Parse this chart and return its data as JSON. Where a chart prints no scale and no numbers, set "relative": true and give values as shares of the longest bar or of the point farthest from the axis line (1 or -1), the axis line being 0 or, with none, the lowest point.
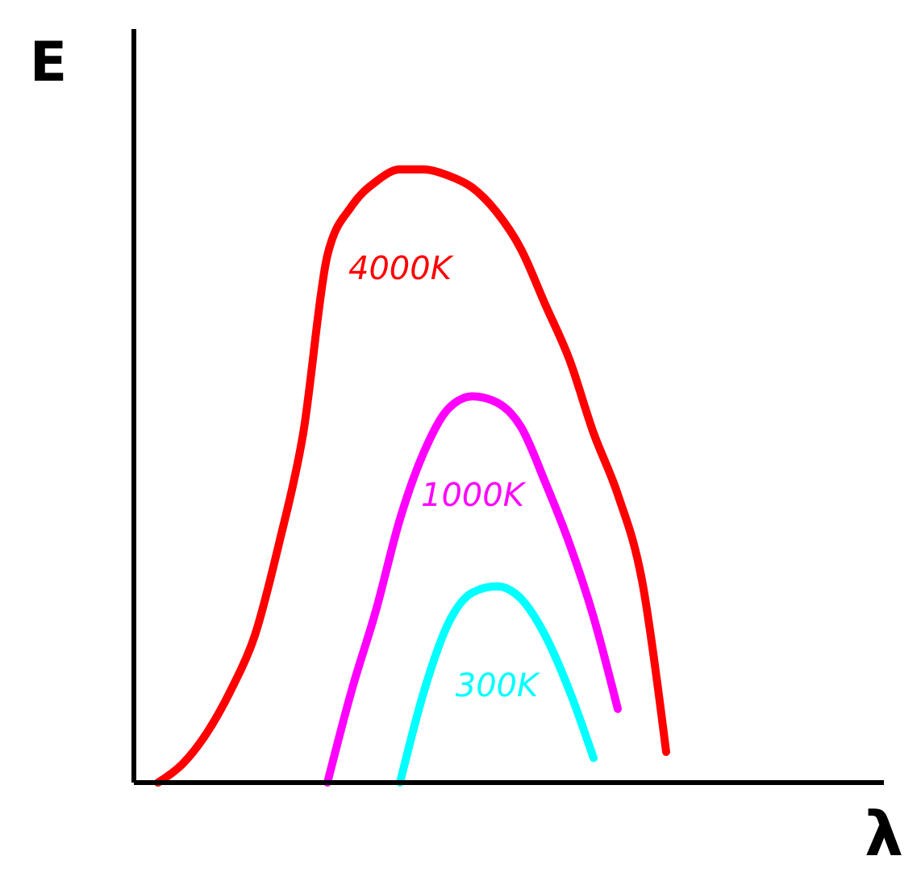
{
  "chart_data": {
    "type": "line",
    "relative": true,
    "ylabel": "E",
    "xlabel": "λ",
    "categories": [
      null,
      null,
      null,
      null,
      null,
      null,
      null,
      null,
      null,
      null,
      null,
      null,
      null,
      null,
      null,
      null,
      null,
      null,
      null,
      null,
      null,
      null,
      null,
      null,
      null,
      null,
      null,
      null,
      null,
      null,
      null,
      null
    ],
    "series": [
      {
        "name": "4000K",
        "color": "#ff0000",
        "values": [
          null,
          0,
          0.03,
          0.08,
          0.15,
          0.24,
          0.39,
          0.57,
          0.86,
          0.94,
          0.98,
          1,
          1,
          0.99,
          0.97,
          0.93,
          0.87,
          0.78,
          0.69,
          0.57,
          0.47,
          0.33,
          0.05,
          null,
          null,
          null,
          null,
          null,
          null,
          null,
          null,
          null
        ]
      },
      {
        "name": "1000K",
        "color": "#ff00ff",
        "values": [
          null,
          null,
          null,
          null,
          null,
          null,
          null,
          null,
          0,
          0.15,
          0.28,
          0.43,
          0.54,
          0.61,
          0.63,
          0.62,
          0.58,
          0.49,
          0.39,
          0.27,
          0.12,
          null,
          null,
          null,
          null,
          null,
          null,
          null,
          null,
          null,
          null,
          null
        ]
      },
      {
        "name": "300K",
        "color": "#00ffff",
        "values": [
          null,
          null,
          null,
          null,
          null,
          null,
          null,
          null,
          null,
          null,
          null,
          0,
          0.15,
          0.26,
          0.31,
          0.32,
          0.3,
          0.24,
          0.15,
          0.04,
          null,
          null,
          null,
          null,
          null,
          null,
          null,
          null,
          null,
          null,
          null,
          null
        ]
      }
    ]
  }
}
